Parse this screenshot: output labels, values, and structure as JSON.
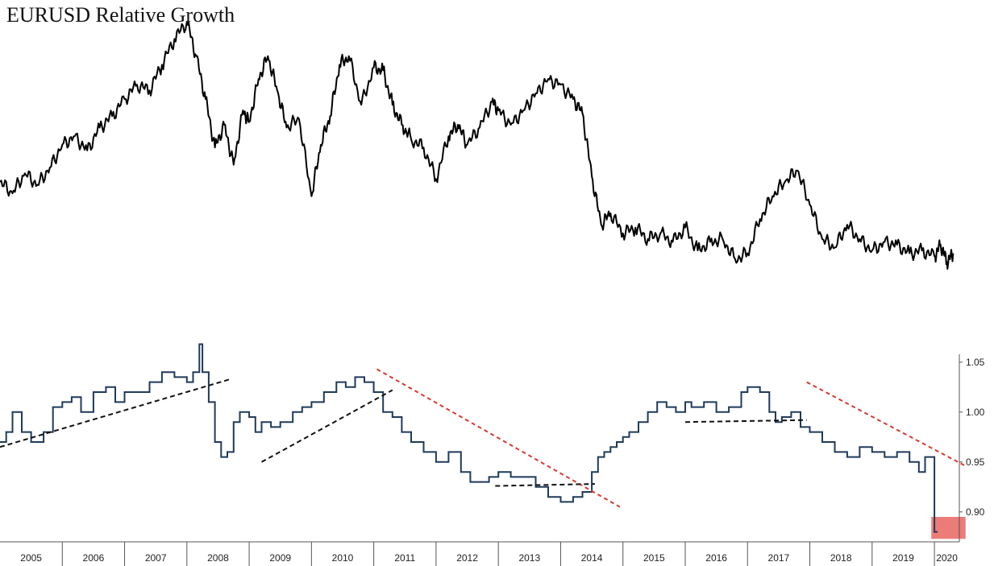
{
  "title": "EURUSD Relative Growth",
  "chart_data": [
    {
      "type": "line",
      "title": "EURUSD Relative Growth",
      "x_range": [
        2005.0,
        2020.4
      ],
      "y_range": [
        0,
        100
      ],
      "note_units": "relative index (no axis printed)",
      "series": [
        {
          "color": "#000000",
          "x": [
            2005.0,
            2005.2,
            2005.4,
            2005.6,
            2005.8,
            2006.0,
            2006.2,
            2006.4,
            2006.6,
            2006.8,
            2007.0,
            2007.2,
            2007.4,
            2007.6,
            2007.8,
            2008.0,
            2008.15,
            2008.3,
            2008.45,
            2008.6,
            2008.75,
            2008.9,
            2009.0,
            2009.15,
            2009.3,
            2009.45,
            2009.6,
            2009.8,
            2010.0,
            2010.15,
            2010.3,
            2010.45,
            2010.6,
            2010.8,
            2011.0,
            2011.15,
            2011.3,
            2011.45,
            2011.6,
            2011.8,
            2012.0,
            2012.2,
            2012.35,
            2012.5,
            2012.7,
            2012.9,
            2013.0,
            2013.2,
            2013.4,
            2013.6,
            2013.8,
            2014.0,
            2014.2,
            2014.35,
            2014.5,
            2014.65,
            2014.8,
            2015.0,
            2015.2,
            2015.4,
            2015.6,
            2015.8,
            2016.0,
            2016.2,
            2016.4,
            2016.6,
            2016.8,
            2017.0,
            2017.2,
            2017.4,
            2017.6,
            2017.8,
            2018.0,
            2018.2,
            2018.4,
            2018.6,
            2018.8,
            2019.0,
            2019.2,
            2019.4,
            2019.6,
            2019.8,
            2020.0,
            2020.1,
            2020.2,
            2020.3
          ],
          "y": [
            42,
            38,
            45,
            41,
            47,
            55,
            58,
            53,
            61,
            65,
            71,
            76,
            74,
            83,
            92,
            98,
            86,
            71,
            54,
            62,
            48,
            67,
            63,
            78,
            86,
            74,
            61,
            64,
            37,
            55,
            65,
            83,
            86,
            69,
            82,
            81,
            69,
            62,
            57,
            54,
            43,
            58,
            62,
            55,
            61,
            70,
            67,
            62,
            67,
            73,
            78,
            76,
            71,
            66,
            44,
            27,
            31,
            24,
            26,
            22,
            24,
            21,
            26,
            18,
            21,
            22,
            15,
            17,
            29,
            37,
            42,
            46,
            34,
            22,
            19,
            27,
            22,
            18,
            21,
            20,
            17,
            18,
            16,
            20,
            14,
            17
          ]
        }
      ]
    },
    {
      "type": "line",
      "step": true,
      "x_range": [
        2005.0,
        2020.4
      ],
      "ylim": [
        0.87,
        1.07
      ],
      "y_ticks": [
        "0.90",
        "0.95",
        "1.00",
        "1.05"
      ],
      "y_tick_values": [
        0.9,
        0.95,
        1.0,
        1.05
      ],
      "x_tick_labels": [
        "2005",
        "2006",
        "2007",
        "2008",
        "2009",
        "2010",
        "2011",
        "2012",
        "2013",
        "2014",
        "2015",
        "2016",
        "2017",
        "2018",
        "2019",
        "2020"
      ],
      "series": [
        {
          "color": "#1f3a5a",
          "x": [
            2005.0,
            2005.1,
            2005.2,
            2005.35,
            2005.5,
            2005.7,
            2005.85,
            2006.0,
            2006.15,
            2006.3,
            2006.5,
            2006.7,
            2006.85,
            2007.0,
            2007.2,
            2007.4,
            2007.6,
            2007.8,
            2008.0,
            2008.1,
            2008.2,
            2008.25,
            2008.35,
            2008.45,
            2008.55,
            2008.65,
            2008.75,
            2008.85,
            2009.0,
            2009.1,
            2009.2,
            2009.35,
            2009.5,
            2009.7,
            2009.85,
            2010.0,
            2010.2,
            2010.4,
            2010.55,
            2010.7,
            2010.85,
            2011.0,
            2011.15,
            2011.3,
            2011.45,
            2011.6,
            2011.8,
            2012.0,
            2012.2,
            2012.4,
            2012.55,
            2012.7,
            2012.85,
            2013.0,
            2013.2,
            2013.4,
            2013.6,
            2013.8,
            2014.0,
            2014.2,
            2014.35,
            2014.5,
            2014.6,
            2014.7,
            2014.8,
            2014.9,
            2015.0,
            2015.1,
            2015.25,
            2015.4,
            2015.55,
            2015.7,
            2015.85,
            2016.0,
            2016.1,
            2016.3,
            2016.5,
            2016.7,
            2016.9,
            2017.0,
            2017.2,
            2017.35,
            2017.45,
            2017.55,
            2017.7,
            2017.85,
            2018.0,
            2018.2,
            2018.4,
            2018.6,
            2018.8,
            2019.0,
            2019.2,
            2019.4,
            2019.6,
            2019.75,
            2019.85,
            2019.95,
            2020.0,
            2020.05
          ],
          "y": [
            0.97,
            0.98,
            1.0,
            0.98,
            0.97,
            0.98,
            1.005,
            1.01,
            1.015,
            1.0,
            1.02,
            1.025,
            1.01,
            1.02,
            1.02,
            1.03,
            1.04,
            1.035,
            1.03,
            1.04,
            1.068,
            1.04,
            1.01,
            0.97,
            0.955,
            0.96,
            0.99,
            1.0,
            0.995,
            0.98,
            0.99,
            0.985,
            0.99,
            1.0,
            1.005,
            1.01,
            1.02,
            1.03,
            1.025,
            1.035,
            1.03,
            1.02,
            1.0,
            0.995,
            0.98,
            0.97,
            0.96,
            0.95,
            0.96,
            0.94,
            0.93,
            0.93,
            0.935,
            0.94,
            0.935,
            0.935,
            0.925,
            0.915,
            0.91,
            0.915,
            0.92,
            0.94,
            0.955,
            0.96,
            0.965,
            0.97,
            0.975,
            0.98,
            0.99,
            1.0,
            1.01,
            1.005,
            1.0,
            1.01,
            1.005,
            1.01,
            1.0,
            1.005,
            1.02,
            1.025,
            1.02,
            1.0,
            0.99,
            0.995,
            1.0,
            0.985,
            0.98,
            0.97,
            0.96,
            0.955,
            0.965,
            0.96,
            0.955,
            0.96,
            0.95,
            0.94,
            0.955,
            0.955,
            0.88,
            0.88
          ]
        }
      ],
      "annotations": [
        {
          "type": "trend",
          "style": "black-dashed",
          "x": [
            2005.0,
            2008.7
          ],
          "y": [
            0.965,
            1.033
          ]
        },
        {
          "type": "trend",
          "style": "black-dashed",
          "x": [
            2009.2,
            2011.3
          ],
          "y": [
            0.95,
            1.022
          ]
        },
        {
          "type": "trend",
          "style": "red-dashed",
          "x": [
            2011.05,
            2014.95
          ],
          "y": [
            1.043,
            0.905
          ]
        },
        {
          "type": "trend",
          "style": "black-dashed",
          "x": [
            2012.95,
            2014.55
          ],
          "y": [
            0.926,
            0.928
          ]
        },
        {
          "type": "trend",
          "style": "black-dashed",
          "x": [
            2016.0,
            2017.95
          ],
          "y": [
            0.99,
            0.992
          ]
        },
        {
          "type": "trend",
          "style": "red-dashed",
          "x": [
            2017.95,
            2020.5
          ],
          "y": [
            1.03,
            0.946
          ]
        },
        {
          "type": "highlight",
          "color": "#ec7c78",
          "x": [
            2019.95,
            2020.5
          ],
          "y": [
            0.873,
            0.895
          ]
        }
      ]
    }
  ]
}
